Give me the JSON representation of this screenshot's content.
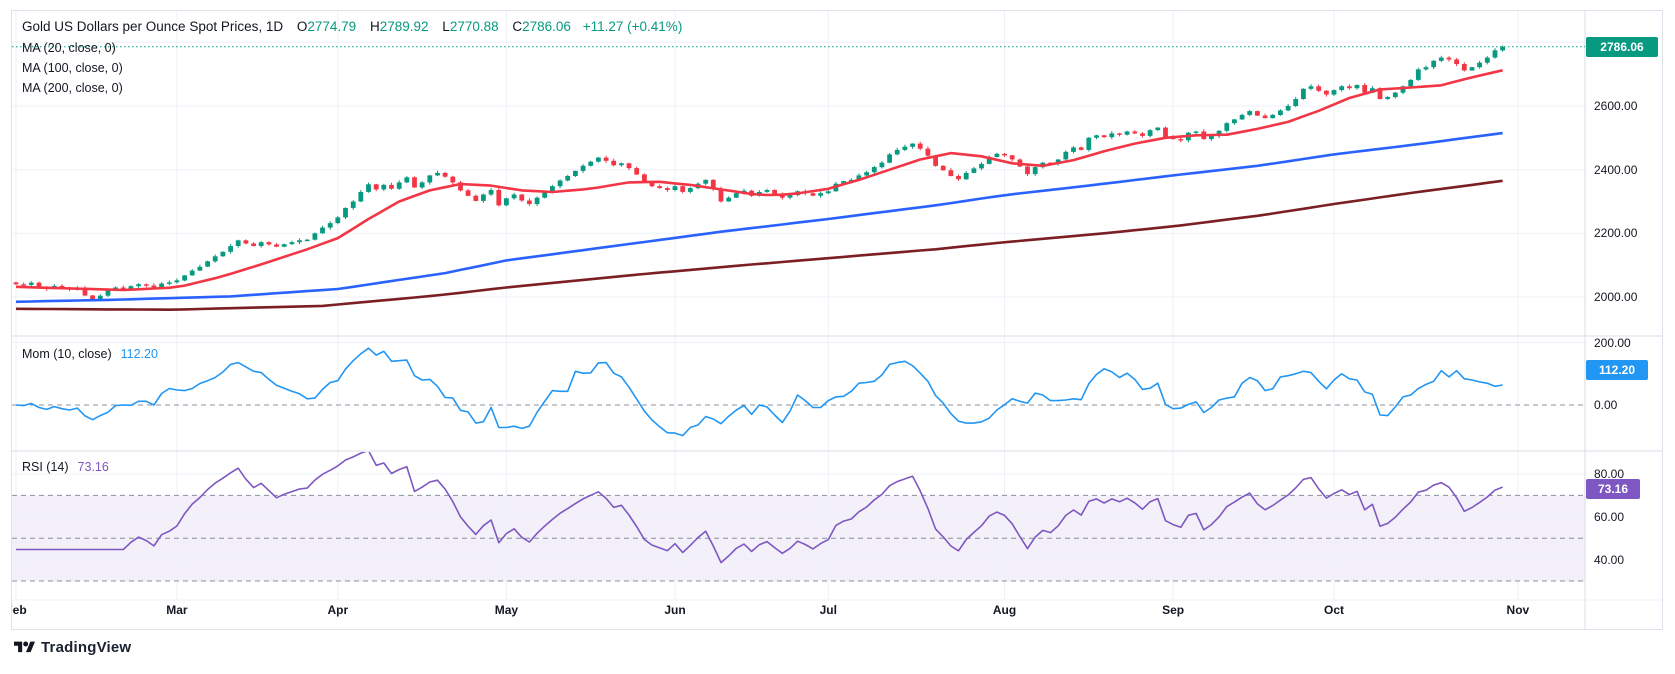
{
  "header": {
    "title": "Gold US Dollars per Ounce Spot Prices, 1D",
    "ohlc": {
      "o_label": "O",
      "open": "2774.79",
      "h_label": "H",
      "high": "2789.92",
      "l_label": "L",
      "low": "2770.88",
      "c_label": "C",
      "close": "2786.06",
      "change": "+11.27",
      "change_pct": "(+0.41%)"
    }
  },
  "overlays": {
    "ma_labels": [
      "MA (20, close, 0)",
      "MA (100, close, 0)",
      "MA (200, close, 0)"
    ]
  },
  "panes": {
    "momentum": {
      "label": "Mom (10, close)",
      "value": "112.20",
      "badge": "112.20",
      "ticks": [
        "200.00",
        "0.00"
      ]
    },
    "rsi": {
      "label": "RSI (14)",
      "value": "73.16",
      "badge": "73.16",
      "ticks": [
        "80.00",
        "60.00",
        "40.00"
      ]
    }
  },
  "price_axis": {
    "ticks": [
      "2600.00",
      "2400.00",
      "2200.00",
      "2000.00"
    ],
    "badge": "2786.06"
  },
  "branding": {
    "name": "TradingView"
  },
  "colors": {
    "up": "#089981",
    "down": "#f23645",
    "ma20": "#f23645",
    "ma100": "#2962ff",
    "ma200": "#7b1f24",
    "mom_line": "#2196f3",
    "rsi_line": "#7e57c2",
    "grid": "#eef1f8",
    "divider": "#d9dde6",
    "dashed": "#8b909e",
    "rsi_band_fill": "rgba(126,87,194,0.09)",
    "current_price": "#089981",
    "axis_text": "#131722"
  },
  "chart_data": {
    "type": "candlestick",
    "title": "Gold US Dollars per Ounce Spot Prices, 1D",
    "interval": "1D",
    "last_candle": {
      "open": 2774.79,
      "high": 2789.92,
      "low": 2770.88,
      "close": 2786.06,
      "change": 11.27,
      "change_pct": 0.41
    },
    "ylim": [
      1930,
      2900
    ],
    "price_gridlines": [
      2000,
      2200,
      2400,
      2600,
      2800
    ],
    "months": [
      {
        "label": "Feb",
        "day": 0
      },
      {
        "label": "Mar",
        "day": 21
      },
      {
        "label": "Apr",
        "day": 42
      },
      {
        "label": "May",
        "day": 64
      },
      {
        "label": "Jun",
        "day": 86
      },
      {
        "label": "Jul",
        "day": 106
      },
      {
        "label": "Aug",
        "day": 129
      },
      {
        "label": "Sep",
        "day": 151
      },
      {
        "label": "Oct",
        "day": 172
      },
      {
        "label": "Nov",
        "day": 196
      }
    ],
    "closes": [
      2040,
      2038,
      2045,
      2032,
      2026,
      2035,
      2028,
      2024,
      2030,
      2005,
      1993,
      2004,
      2022,
      2030,
      2026,
      2034,
      2040,
      2036,
      2030,
      2042,
      2046,
      2052,
      2068,
      2083,
      2095,
      2112,
      2128,
      2142,
      2160,
      2178,
      2168,
      2160,
      2172,
      2165,
      2158,
      2166,
      2172,
      2178,
      2180,
      2200,
      2218,
      2232,
      2250,
      2280,
      2300,
      2330,
      2354,
      2338,
      2352,
      2340,
      2360,
      2376,
      2344,
      2360,
      2382,
      2390,
      2378,
      2360,
      2335,
      2318,
      2302,
      2322,
      2336,
      2288,
      2310,
      2322,
      2303,
      2292,
      2312,
      2330,
      2348,
      2366,
      2380,
      2396,
      2412,
      2425,
      2438,
      2428,
      2414,
      2420,
      2405,
      2385,
      2360,
      2348,
      2342,
      2336,
      2348,
      2330,
      2342,
      2356,
      2368,
      2340,
      2300,
      2312,
      2326,
      2334,
      2318,
      2330,
      2336,
      2324,
      2312,
      2320,
      2332,
      2326,
      2318,
      2326,
      2332,
      2356,
      2364,
      2368,
      2382,
      2392,
      2408,
      2422,
      2448,
      2462,
      2472,
      2482,
      2466,
      2444,
      2412,
      2398,
      2380,
      2370,
      2390,
      2404,
      2418,
      2440,
      2450,
      2445,
      2432,
      2410,
      2386,
      2408,
      2422,
      2418,
      2432,
      2456,
      2470,
      2462,
      2500,
      2508,
      2502,
      2514,
      2510,
      2520,
      2514,
      2506,
      2524,
      2532,
      2502,
      2496,
      2492,
      2516,
      2520,
      2496,
      2506,
      2522,
      2546,
      2558,
      2572,
      2584,
      2570,
      2562,
      2572,
      2586,
      2600,
      2622,
      2654,
      2662,
      2648,
      2636,
      2650,
      2662,
      2656,
      2666,
      2642,
      2656,
      2622,
      2628,
      2642,
      2662,
      2682,
      2715,
      2722,
      2742,
      2752,
      2746,
      2732,
      2712,
      2722,
      2736,
      2752,
      2775,
      2786.06
    ],
    "indicators": {
      "momentum": {
        "period": 10,
        "source": "close",
        "last": 112.2,
        "gridlines": [
          200,
          0
        ]
      },
      "rsi": {
        "period": 14,
        "last": 73.16,
        "dashed_levels": [
          70,
          50,
          30
        ],
        "band": [
          30,
          70
        ]
      }
    },
    "moving_averages": [
      {
        "period": 20,
        "color": "#f23645",
        "points": [
          [
            0,
            2032
          ],
          [
            8,
            2026
          ],
          [
            14,
            2022
          ],
          [
            21,
            2030
          ],
          [
            27,
            2065
          ],
          [
            33,
            2110
          ],
          [
            38,
            2150
          ],
          [
            42,
            2185
          ],
          [
            46,
            2245
          ],
          [
            50,
            2300
          ],
          [
            54,
            2335
          ],
          [
            58,
            2355
          ],
          [
            62,
            2350
          ],
          [
            66,
            2335
          ],
          [
            70,
            2330
          ],
          [
            75,
            2340
          ],
          [
            80,
            2360
          ],
          [
            84,
            2362
          ],
          [
            88,
            2352
          ],
          [
            92,
            2338
          ],
          [
            97,
            2320
          ],
          [
            101,
            2322
          ],
          [
            106,
            2340
          ],
          [
            110,
            2368
          ],
          [
            114,
            2400
          ],
          [
            118,
            2432
          ],
          [
            122,
            2452
          ],
          [
            126,
            2442
          ],
          [
            130,
            2420
          ],
          [
            134,
            2412
          ],
          [
            138,
            2430
          ],
          [
            142,
            2458
          ],
          [
            146,
            2482
          ],
          [
            150,
            2500
          ],
          [
            154,
            2508
          ],
          [
            158,
            2510
          ],
          [
            162,
            2528
          ],
          [
            166,
            2550
          ],
          [
            170,
            2585
          ],
          [
            174,
            2625
          ],
          [
            178,
            2652
          ],
          [
            182,
            2658
          ],
          [
            186,
            2665
          ],
          [
            190,
            2690
          ],
          [
            194,
            2712
          ]
        ]
      },
      {
        "period": 100,
        "color": "#2962ff",
        "points": [
          [
            0,
            1985
          ],
          [
            14,
            1992
          ],
          [
            28,
            2002
          ],
          [
            42,
            2025
          ],
          [
            56,
            2075
          ],
          [
            64,
            2115
          ],
          [
            78,
            2160
          ],
          [
            92,
            2205
          ],
          [
            106,
            2245
          ],
          [
            120,
            2288
          ],
          [
            129,
            2320
          ],
          [
            140,
            2350
          ],
          [
            151,
            2382
          ],
          [
            162,
            2412
          ],
          [
            172,
            2448
          ],
          [
            183,
            2480
          ],
          [
            194,
            2515
          ]
        ]
      },
      {
        "period": 200,
        "color": "#7b1f24",
        "points": [
          [
            0,
            1963
          ],
          [
            20,
            1960
          ],
          [
            40,
            1972
          ],
          [
            55,
            2005
          ],
          [
            64,
            2030
          ],
          [
            80,
            2068
          ],
          [
            95,
            2100
          ],
          [
            106,
            2122
          ],
          [
            120,
            2150
          ],
          [
            129,
            2172
          ],
          [
            142,
            2200
          ],
          [
            151,
            2222
          ],
          [
            162,
            2255
          ],
          [
            172,
            2292
          ],
          [
            183,
            2330
          ],
          [
            194,
            2365
          ]
        ]
      }
    ]
  }
}
